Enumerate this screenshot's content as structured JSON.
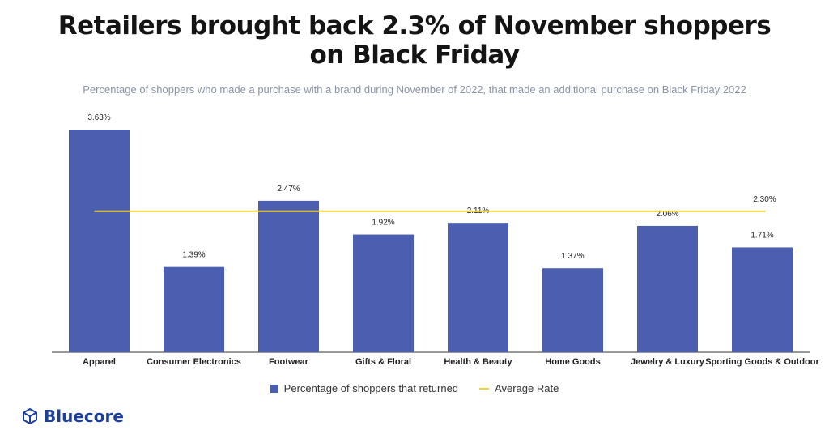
{
  "header": {
    "title_line1": "Retailers brought back 2.3% of November shoppers",
    "title_line2": "on Black Friday",
    "subtitle": "Percentage of shoppers who made a purchase with a brand during November of 2022,  that made an additional purchase on Black Friday 2022"
  },
  "legend": {
    "bar_label": "Percentage of shoppers that returned",
    "line_label": "Average Rate"
  },
  "brand": {
    "name": "Bluecore",
    "icon": "cube-logo-icon"
  },
  "colors": {
    "bar": "#4b5eb0",
    "average_line": "#f0d23c",
    "brand": "#1c3f9e"
  },
  "chart_data": {
    "type": "bar",
    "title": "Retailers brought back 2.3% of November shoppers on Black Friday",
    "categories": [
      "Apparel",
      "Consumer Electronics",
      "Footwear",
      "Gifts & Floral",
      "Health & Beauty",
      "Home Goods",
      "Jewelry & Luxury",
      "Sporting Goods & Outdoor"
    ],
    "series": [
      {
        "name": "Percentage of shoppers that returned",
        "values": [
          3.63,
          1.39,
          2.47,
          1.92,
          2.11,
          1.37,
          2.06,
          1.71
        ],
        "labels": [
          "3.63%",
          "1.39%",
          "2.47%",
          "1.92%",
          "2.11%",
          "1.37%",
          "2.06%",
          "1.71%"
        ]
      },
      {
        "name": "Average Rate",
        "type": "line",
        "value": 2.3,
        "label": "2.30%"
      }
    ],
    "ylim": [
      0,
      3.63
    ],
    "grid": false,
    "legend_position": "bottom"
  }
}
